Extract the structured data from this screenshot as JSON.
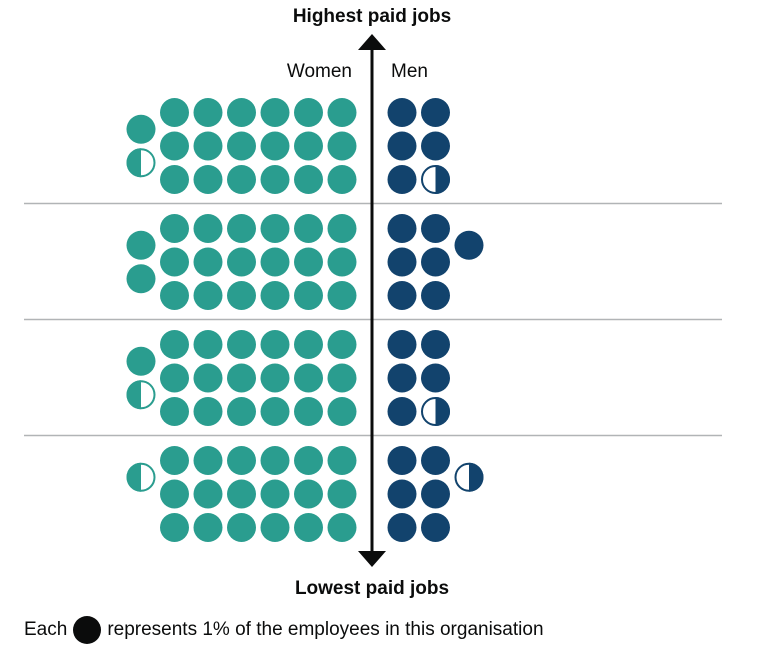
{
  "colors": {
    "women": "#2a9d8f",
    "men": "#12436d",
    "axis": "#0b0c0c",
    "divider": "#b1b4b6",
    "legend_dot": "#0b0c0c"
  },
  "chart_data": {
    "type": "pictogram",
    "unit": "1% of employees",
    "axis_top_label": "Highest paid jobs",
    "axis_bottom_label": "Lowest paid jobs",
    "women_label": "Women",
    "men_label": "Men",
    "quartiles": [
      {
        "women": 19.5,
        "men": 5.5
      },
      {
        "women": 20,
        "men": 7
      },
      {
        "women": 19.5,
        "men": 5.5
      },
      {
        "women": 18.5,
        "men": 6.5
      }
    ]
  },
  "legend": {
    "prefix": "Each",
    "suffix": "represents 1% of the employees in this organisation"
  }
}
